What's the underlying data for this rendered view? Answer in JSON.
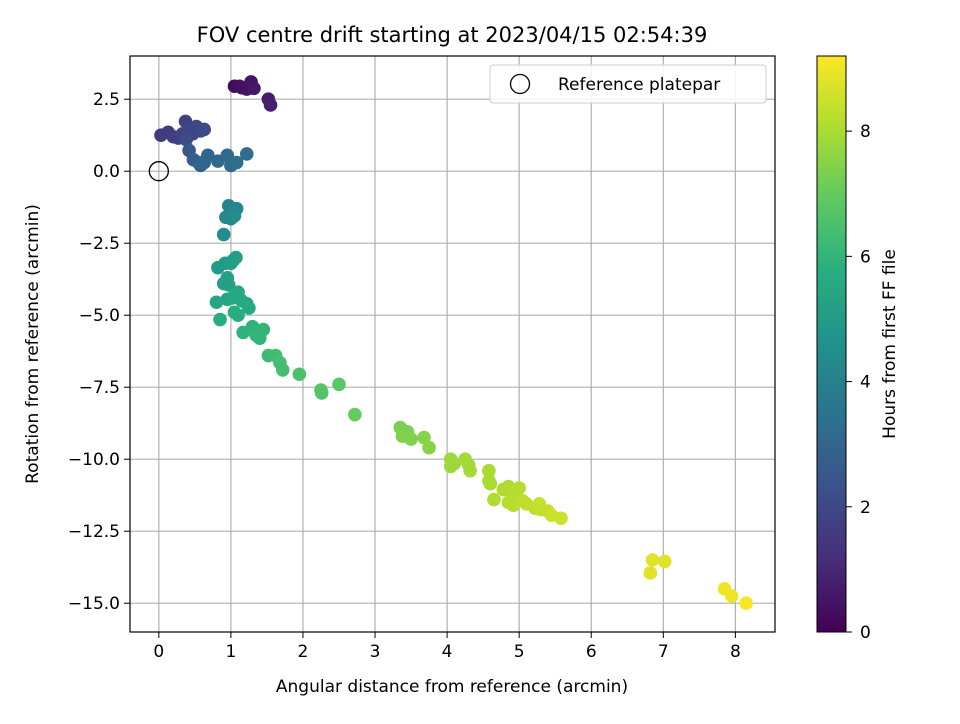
{
  "chart_data": {
    "type": "scatter",
    "title": "FOV centre drift starting at 2023/04/15 02:54:39",
    "xlabel": "Angular distance from reference (arcmin)",
    "ylabel": "Rotation from reference (arcmin)",
    "xlim": [
      -0.4,
      8.55
    ],
    "ylim": [
      -16.0,
      4.0
    ],
    "xticks": [
      0,
      1,
      2,
      3,
      4,
      5,
      6,
      7,
      8
    ],
    "xtick_labels": [
      "0",
      "1",
      "2",
      "3",
      "4",
      "5",
      "6",
      "7",
      "8"
    ],
    "yticks": [
      2.5,
      0.0,
      -2.5,
      -5.0,
      -7.5,
      -10.0,
      -12.5,
      -15.0
    ],
    "ytick_labels": [
      "2.5",
      "0.0",
      "−2.5",
      "−5.0",
      "−7.5",
      "−10.0",
      "−12.5",
      "−15.0"
    ],
    "grid": true,
    "legend": {
      "position": "top-right",
      "entries": [
        "Reference platepar"
      ]
    },
    "reference_point": {
      "x": 0.0,
      "y": 0.0
    },
    "colorbar": {
      "label": "Hours from first FF file",
      "range": [
        0,
        9.2
      ],
      "ticks": [
        0,
        2,
        4,
        6,
        8
      ],
      "tick_labels": [
        "0",
        "2",
        "4",
        "6",
        "8"
      ],
      "colormap": "viridis"
    },
    "points": [
      {
        "x": 1.05,
        "y": 2.95,
        "c": 0.3
      },
      {
        "x": 1.15,
        "y": 2.9,
        "c": 0.4
      },
      {
        "x": 1.22,
        "y": 2.85,
        "c": 0.5
      },
      {
        "x": 1.28,
        "y": 3.1,
        "c": 0.5
      },
      {
        "x": 1.32,
        "y": 2.88,
        "c": 0.6
      },
      {
        "x": 1.12,
        "y": 2.95,
        "c": 0.4
      },
      {
        "x": 1.52,
        "y": 2.5,
        "c": 0.7
      },
      {
        "x": 1.55,
        "y": 2.3,
        "c": 0.8
      },
      {
        "x": 0.03,
        "y": 1.25,
        "c": 1.6
      },
      {
        "x": 0.13,
        "y": 1.35,
        "c": 1.6
      },
      {
        "x": 0.2,
        "y": 1.2,
        "c": 1.7
      },
      {
        "x": 0.27,
        "y": 1.15,
        "c": 1.7
      },
      {
        "x": 0.33,
        "y": 1.3,
        "c": 1.8
      },
      {
        "x": 0.37,
        "y": 1.73,
        "c": 1.8
      },
      {
        "x": 0.42,
        "y": 1.45,
        "c": 1.9
      },
      {
        "x": 0.47,
        "y": 1.3,
        "c": 1.9
      },
      {
        "x": 0.52,
        "y": 1.55,
        "c": 2.0
      },
      {
        "x": 0.58,
        "y": 1.4,
        "c": 2.0
      },
      {
        "x": 0.63,
        "y": 1.45,
        "c": 2.1
      },
      {
        "x": 0.38,
        "y": 1.1,
        "c": 2.1
      },
      {
        "x": 0.42,
        "y": 0.72,
        "c": 2.5
      },
      {
        "x": 0.48,
        "y": 0.4,
        "c": 2.7
      },
      {
        "x": 0.55,
        "y": 0.3,
        "c": 2.8
      },
      {
        "x": 0.58,
        "y": 0.2,
        "c": 2.9
      },
      {
        "x": 0.63,
        "y": 0.3,
        "c": 3.0
      },
      {
        "x": 0.68,
        "y": 0.55,
        "c": 3.0
      },
      {
        "x": 0.82,
        "y": 0.35,
        "c": 3.1
      },
      {
        "x": 0.95,
        "y": 0.55,
        "c": 3.2
      },
      {
        "x": 1.0,
        "y": 0.2,
        "c": 3.2
      },
      {
        "x": 1.08,
        "y": 0.3,
        "c": 3.3
      },
      {
        "x": 1.22,
        "y": 0.6,
        "c": 3.3
      },
      {
        "x": 0.97,
        "y": -1.2,
        "c": 4.1
      },
      {
        "x": 1.03,
        "y": -1.4,
        "c": 4.2
      },
      {
        "x": 1.08,
        "y": -1.3,
        "c": 4.2
      },
      {
        "x": 0.93,
        "y": -1.6,
        "c": 4.3
      },
      {
        "x": 1.0,
        "y": -1.65,
        "c": 4.3
      },
      {
        "x": 1.05,
        "y": -1.55,
        "c": 4.4
      },
      {
        "x": 0.9,
        "y": -2.2,
        "c": 4.5
      },
      {
        "x": 0.82,
        "y": -3.35,
        "c": 5.0
      },
      {
        "x": 0.92,
        "y": -3.2,
        "c": 5.0
      },
      {
        "x": 1.0,
        "y": -3.2,
        "c": 5.1
      },
      {
        "x": 1.07,
        "y": -3.0,
        "c": 5.1
      },
      {
        "x": 1.03,
        "y": -3.1,
        "c": 5.1
      },
      {
        "x": 0.95,
        "y": -3.7,
        "c": 5.2
      },
      {
        "x": 0.9,
        "y": -3.9,
        "c": 5.2
      },
      {
        "x": 0.97,
        "y": -3.95,
        "c": 5.2
      },
      {
        "x": 0.8,
        "y": -4.55,
        "c": 5.4
      },
      {
        "x": 0.95,
        "y": -4.45,
        "c": 5.4
      },
      {
        "x": 1.02,
        "y": -4.4,
        "c": 5.5
      },
      {
        "x": 1.1,
        "y": -4.2,
        "c": 5.5
      },
      {
        "x": 1.15,
        "y": -4.5,
        "c": 5.5
      },
      {
        "x": 1.22,
        "y": -4.6,
        "c": 5.6
      },
      {
        "x": 1.25,
        "y": -4.75,
        "c": 5.6
      },
      {
        "x": 1.05,
        "y": -4.9,
        "c": 5.7
      },
      {
        "x": 1.1,
        "y": -5.0,
        "c": 5.7
      },
      {
        "x": 0.85,
        "y": -5.15,
        "c": 5.7
      },
      {
        "x": 1.17,
        "y": -5.6,
        "c": 5.9
      },
      {
        "x": 1.3,
        "y": -5.4,
        "c": 5.9
      },
      {
        "x": 1.35,
        "y": -5.7,
        "c": 6.0
      },
      {
        "x": 1.4,
        "y": -5.8,
        "c": 6.0
      },
      {
        "x": 1.45,
        "y": -5.5,
        "c": 6.0
      },
      {
        "x": 1.52,
        "y": -6.4,
        "c": 6.2
      },
      {
        "x": 1.62,
        "y": -6.4,
        "c": 6.3
      },
      {
        "x": 1.68,
        "y": -6.65,
        "c": 6.4
      },
      {
        "x": 1.72,
        "y": -6.9,
        "c": 6.4
      },
      {
        "x": 1.95,
        "y": -7.05,
        "c": 6.5
      },
      {
        "x": 2.25,
        "y": -7.6,
        "c": 6.7
      },
      {
        "x": 2.26,
        "y": -7.7,
        "c": 6.7
      },
      {
        "x": 2.5,
        "y": -7.4,
        "c": 6.8
      },
      {
        "x": 2.72,
        "y": -8.45,
        "c": 7.0
      },
      {
        "x": 3.35,
        "y": -8.9,
        "c": 7.3
      },
      {
        "x": 3.45,
        "y": -9.05,
        "c": 7.3
      },
      {
        "x": 3.38,
        "y": -9.2,
        "c": 7.4
      },
      {
        "x": 3.5,
        "y": -9.3,
        "c": 7.4
      },
      {
        "x": 3.68,
        "y": -9.25,
        "c": 7.5
      },
      {
        "x": 3.75,
        "y": -9.6,
        "c": 7.5
      },
      {
        "x": 4.05,
        "y": -10.0,
        "c": 7.8
      },
      {
        "x": 4.1,
        "y": -10.15,
        "c": 7.8
      },
      {
        "x": 4.05,
        "y": -10.25,
        "c": 7.8
      },
      {
        "x": 4.25,
        "y": -10.0,
        "c": 7.9
      },
      {
        "x": 4.3,
        "y": -10.2,
        "c": 7.9
      },
      {
        "x": 4.32,
        "y": -10.4,
        "c": 7.9
      },
      {
        "x": 4.58,
        "y": -10.4,
        "c": 8.0
      },
      {
        "x": 4.58,
        "y": -10.75,
        "c": 8.0
      },
      {
        "x": 4.6,
        "y": -10.85,
        "c": 8.0
      },
      {
        "x": 4.65,
        "y": -11.4,
        "c": 8.1
      },
      {
        "x": 4.78,
        "y": -11.05,
        "c": 8.1
      },
      {
        "x": 4.85,
        "y": -10.95,
        "c": 8.1
      },
      {
        "x": 4.9,
        "y": -11.2,
        "c": 8.1
      },
      {
        "x": 4.95,
        "y": -11.1,
        "c": 8.2
      },
      {
        "x": 4.85,
        "y": -11.5,
        "c": 8.2
      },
      {
        "x": 4.92,
        "y": -11.6,
        "c": 8.2
      },
      {
        "x": 5.0,
        "y": -11.4,
        "c": 8.2
      },
      {
        "x": 5.0,
        "y": -11.0,
        "c": 8.2
      },
      {
        "x": 5.05,
        "y": -11.45,
        "c": 8.3
      },
      {
        "x": 5.1,
        "y": -11.55,
        "c": 8.3
      },
      {
        "x": 5.22,
        "y": -11.7,
        "c": 8.3
      },
      {
        "x": 5.28,
        "y": -11.55,
        "c": 8.4
      },
      {
        "x": 5.3,
        "y": -11.75,
        "c": 8.4
      },
      {
        "x": 5.4,
        "y": -11.8,
        "c": 8.4
      },
      {
        "x": 5.45,
        "y": -11.95,
        "c": 8.5
      },
      {
        "x": 5.58,
        "y": -12.05,
        "c": 8.5
      },
      {
        "x": 6.85,
        "y": -13.5,
        "c": 8.8
      },
      {
        "x": 7.02,
        "y": -13.55,
        "c": 8.8
      },
      {
        "x": 6.82,
        "y": -13.95,
        "c": 8.8
      },
      {
        "x": 7.85,
        "y": -14.5,
        "c": 9.0
      },
      {
        "x": 7.95,
        "y": -14.75,
        "c": 9.0
      },
      {
        "x": 8.15,
        "y": -15.0,
        "c": 9.1
      }
    ]
  }
}
